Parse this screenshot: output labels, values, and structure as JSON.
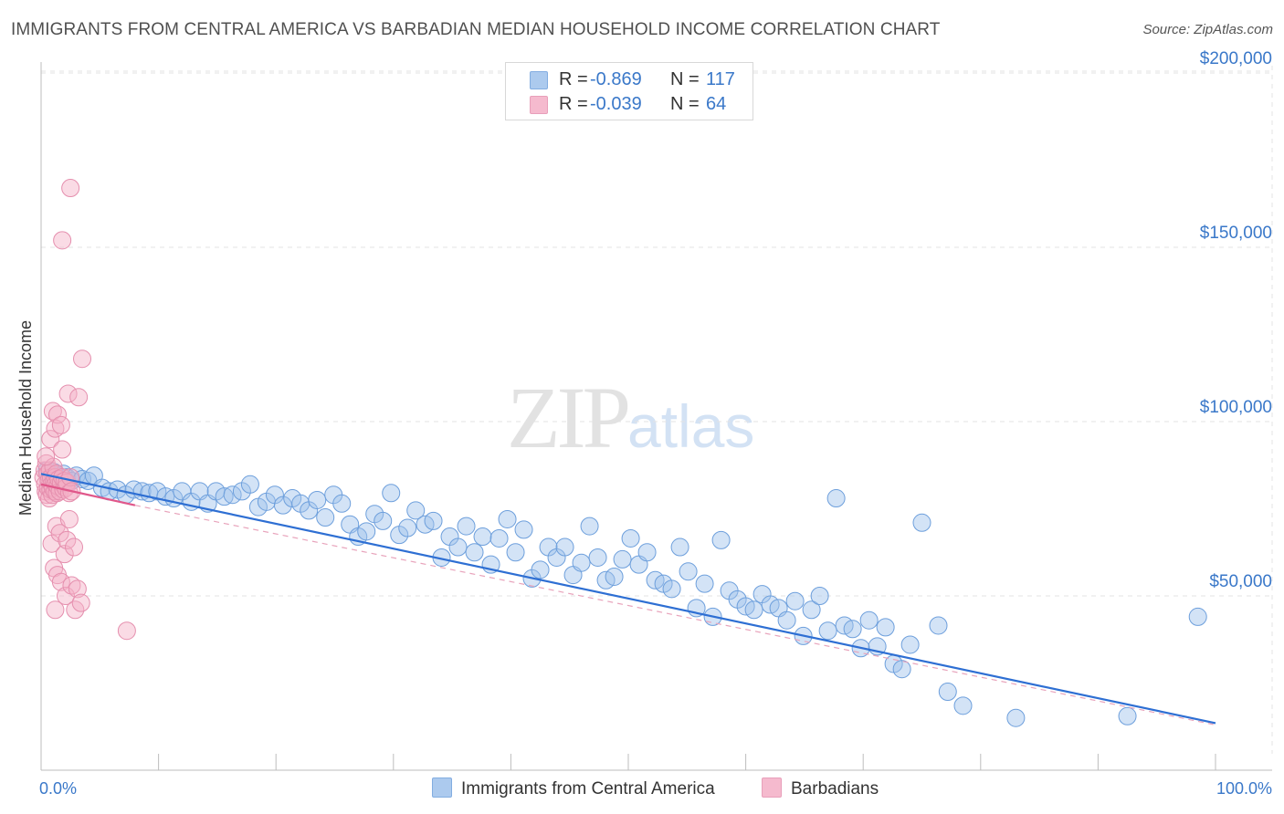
{
  "title": "IMMIGRANTS FROM CENTRAL AMERICA VS BARBADIAN MEDIAN HOUSEHOLD INCOME CORRELATION CHART",
  "source": "Source: ZipAtlas.com",
  "watermark": {
    "zip": "ZIP",
    "atlas": "atlas"
  },
  "legend": {
    "rows": [
      {
        "r_label": "R =",
        "r_value": "-0.869",
        "n_label": "N =",
        "n_value": "117",
        "color": "#9ec1ec"
      },
      {
        "r_label": "R =",
        "r_value": "-0.039",
        "n_label": "N =",
        "n_value": "64",
        "color": "#f4afc6"
      }
    ]
  },
  "bottom_legend": [
    {
      "label": "Immigrants from Central America",
      "color": "#9ec1ec"
    },
    {
      "label": "Barbadians",
      "color": "#f4afc6"
    }
  ],
  "chart_data": {
    "type": "scatter",
    "title": "IMMIGRANTS FROM CENTRAL AMERICA VS BARBADIAN MEDIAN HOUSEHOLD INCOME CORRELATION CHART",
    "xlabel": "",
    "ylabel": "Median Household Income",
    "xlim": [
      0,
      100
    ],
    "ylim": [
      0,
      205000
    ],
    "x_tick_labels": [
      "0.0%",
      "100.0%"
    ],
    "y_ticks": [
      50000,
      100000,
      150000,
      200000
    ],
    "y_tick_labels": [
      "$50,000",
      "$100,000",
      "$150,000",
      "$200,000"
    ],
    "grid": true,
    "legend_position": "top-center",
    "series": [
      {
        "name": "Immigrants from Central America",
        "color": "#9ec1ec",
        "stroke": "#6d9fdc",
        "trend": {
          "x": [
            0,
            100
          ],
          "y": [
            85000,
            13500
          ],
          "color": "#2e6fd3",
          "style": "solid"
        },
        "points": [
          [
            0.5,
            86000
          ],
          [
            0.8,
            84000
          ],
          [
            1.1,
            85500
          ],
          [
            1.3,
            84500
          ],
          [
            1.6,
            83500
          ],
          [
            1.9,
            85000
          ],
          [
            2.2,
            84000
          ],
          [
            2.6,
            83000
          ],
          [
            3.0,
            84500
          ],
          [
            3.5,
            83500
          ],
          [
            4.0,
            83000
          ],
          [
            4.5,
            84500
          ],
          [
            5.2,
            81000
          ],
          [
            5.8,
            80000
          ],
          [
            6.5,
            80500
          ],
          [
            7.2,
            79000
          ],
          [
            7.9,
            80500
          ],
          [
            8.6,
            80000
          ],
          [
            9.2,
            79500
          ],
          [
            9.9,
            80000
          ],
          [
            10.6,
            78500
          ],
          [
            11.3,
            78000
          ],
          [
            12.0,
            80000
          ],
          [
            12.8,
            77000
          ],
          [
            13.5,
            80000
          ],
          [
            14.2,
            76500
          ],
          [
            14.9,
            80000
          ],
          [
            15.6,
            78500
          ],
          [
            16.3,
            79000
          ],
          [
            17.1,
            80000
          ],
          [
            17.8,
            82000
          ],
          [
            18.5,
            75500
          ],
          [
            19.2,
            77000
          ],
          [
            19.9,
            79000
          ],
          [
            20.6,
            76000
          ],
          [
            21.4,
            78000
          ],
          [
            22.1,
            76500
          ],
          [
            22.8,
            74500
          ],
          [
            23.5,
            77500
          ],
          [
            24.2,
            72500
          ],
          [
            24.9,
            79000
          ],
          [
            25.6,
            76500
          ],
          [
            26.3,
            70500
          ],
          [
            27.0,
            67000
          ],
          [
            27.7,
            68500
          ],
          [
            28.4,
            73500
          ],
          [
            29.1,
            71500
          ],
          [
            29.8,
            79500
          ],
          [
            30.5,
            67500
          ],
          [
            31.2,
            69500
          ],
          [
            31.9,
            74500
          ],
          [
            32.7,
            70500
          ],
          [
            33.4,
            71500
          ],
          [
            34.1,
            61000
          ],
          [
            34.8,
            67000
          ],
          [
            35.5,
            64000
          ],
          [
            36.2,
            70000
          ],
          [
            36.9,
            62500
          ],
          [
            37.6,
            67000
          ],
          [
            38.3,
            59000
          ],
          [
            39.0,
            66500
          ],
          [
            39.7,
            72000
          ],
          [
            40.4,
            62500
          ],
          [
            41.1,
            69000
          ],
          [
            41.8,
            55000
          ],
          [
            42.5,
            57500
          ],
          [
            43.2,
            64000
          ],
          [
            43.9,
            61000
          ],
          [
            44.6,
            64000
          ],
          [
            45.3,
            56000
          ],
          [
            46.0,
            59500
          ],
          [
            46.7,
            70000
          ],
          [
            47.4,
            61000
          ],
          [
            48.1,
            54500
          ],
          [
            48.8,
            55500
          ],
          [
            49.5,
            60500
          ],
          [
            50.2,
            66500
          ],
          [
            50.9,
            59000
          ],
          [
            51.6,
            62500
          ],
          [
            52.3,
            54500
          ],
          [
            53.0,
            53500
          ],
          [
            53.7,
            52000
          ],
          [
            54.4,
            64000
          ],
          [
            55.1,
            57000
          ],
          [
            55.8,
            46500
          ],
          [
            56.5,
            53500
          ],
          [
            57.2,
            44000
          ],
          [
            57.9,
            66000
          ],
          [
            58.6,
            51500
          ],
          [
            59.3,
            49000
          ],
          [
            60.0,
            47000
          ],
          [
            60.7,
            46000
          ],
          [
            61.4,
            50500
          ],
          [
            62.1,
            47500
          ],
          [
            62.8,
            46500
          ],
          [
            63.5,
            43000
          ],
          [
            64.2,
            48500
          ],
          [
            64.9,
            38500
          ],
          [
            65.6,
            46000
          ],
          [
            66.3,
            50000
          ],
          [
            67.0,
            40000
          ],
          [
            67.7,
            78000
          ],
          [
            68.4,
            41500
          ],
          [
            69.1,
            40500
          ],
          [
            69.8,
            35000
          ],
          [
            70.5,
            43000
          ],
          [
            71.2,
            35500
          ],
          [
            71.9,
            41000
          ],
          [
            72.6,
            30500
          ],
          [
            73.3,
            29000
          ],
          [
            74.0,
            36000
          ],
          [
            75.0,
            71000
          ],
          [
            76.4,
            41500
          ],
          [
            77.2,
            22500
          ],
          [
            78.5,
            18500
          ],
          [
            83.0,
            15000
          ],
          [
            92.5,
            15500
          ],
          [
            98.5,
            44000
          ]
        ]
      },
      {
        "name": "Barbadians",
        "color": "#f4afc6",
        "stroke": "#e58fae",
        "trend": {
          "x": [
            0,
            8
          ],
          "y": [
            82000,
            76000
          ],
          "color": "#e0578a",
          "style": "solid"
        },
        "trend_extension": {
          "x": [
            8,
            100
          ],
          "y": [
            76000,
            13000
          ],
          "color": "#e8a3bb",
          "style": "dashed"
        },
        "points": [
          [
            0.2,
            84000
          ],
          [
            0.3,
            86000
          ],
          [
            0.35,
            82000
          ],
          [
            0.4,
            80000
          ],
          [
            0.45,
            88000
          ],
          [
            0.5,
            79000
          ],
          [
            0.55,
            85000
          ],
          [
            0.6,
            81000
          ],
          [
            0.65,
            83000
          ],
          [
            0.7,
            78000
          ],
          [
            0.75,
            86000
          ],
          [
            0.8,
            80500
          ],
          [
            0.85,
            84000
          ],
          [
            0.9,
            82000
          ],
          [
            0.95,
            79000
          ],
          [
            1.0,
            81000
          ],
          [
            1.05,
            87000
          ],
          [
            1.1,
            83000
          ],
          [
            1.15,
            80000
          ],
          [
            1.2,
            84000
          ],
          [
            1.25,
            82000
          ],
          [
            1.3,
            85000
          ],
          [
            1.35,
            79500
          ],
          [
            1.4,
            81500
          ],
          [
            1.5,
            83500
          ],
          [
            1.6,
            80000
          ],
          [
            1.7,
            82500
          ],
          [
            1.8,
            84000
          ],
          [
            1.9,
            80500
          ],
          [
            2.0,
            83000
          ],
          [
            2.1,
            81000
          ],
          [
            2.2,
            82500
          ],
          [
            2.4,
            79500
          ],
          [
            2.5,
            84000
          ],
          [
            2.6,
            80000
          ],
          [
            0.4,
            90000
          ],
          [
            0.8,
            95000
          ],
          [
            1.2,
            98000
          ],
          [
            1.8,
            92000
          ],
          [
            1.0,
            103000
          ],
          [
            1.4,
            102000
          ],
          [
            1.7,
            99000
          ],
          [
            2.3,
            108000
          ],
          [
            3.2,
            107000
          ],
          [
            3.5,
            118000
          ],
          [
            0.9,
            65000
          ],
          [
            1.3,
            70000
          ],
          [
            1.6,
            68000
          ],
          [
            2.0,
            62000
          ],
          [
            2.2,
            66000
          ],
          [
            2.4,
            72000
          ],
          [
            2.8,
            64000
          ],
          [
            1.1,
            58000
          ],
          [
            1.4,
            56000
          ],
          [
            1.7,
            54000
          ],
          [
            2.1,
            50000
          ],
          [
            2.6,
            53000
          ],
          [
            3.1,
            52000
          ],
          [
            1.2,
            46000
          ],
          [
            2.9,
            46000
          ],
          [
            3.4,
            48000
          ],
          [
            7.3,
            40000
          ],
          [
            1.8,
            152000
          ],
          [
            2.5,
            167000
          ]
        ]
      }
    ]
  }
}
